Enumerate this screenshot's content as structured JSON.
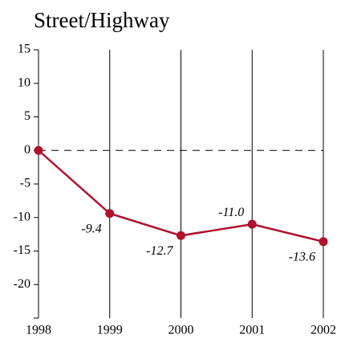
{
  "chart_data": {
    "type": "line",
    "title": "Street/Highway",
    "categories": [
      "1998",
      "1999",
      "2000",
      "2001",
      "2002"
    ],
    "series": [
      {
        "name": null,
        "color": "#b0122d",
        "values": [
          0,
          -9.4,
          -12.7,
          -11.0,
          -13.6
        ],
        "value_labels": [
          null,
          "-9.4",
          "-12.7",
          "-11.0",
          "-13.6"
        ]
      }
    ],
    "ylim": [
      -25,
      15
    ],
    "yticks": [
      -20,
      -15,
      -10,
      -5,
      0,
      5,
      10,
      15
    ],
    "zero_line": 0,
    "grid": true
  }
}
